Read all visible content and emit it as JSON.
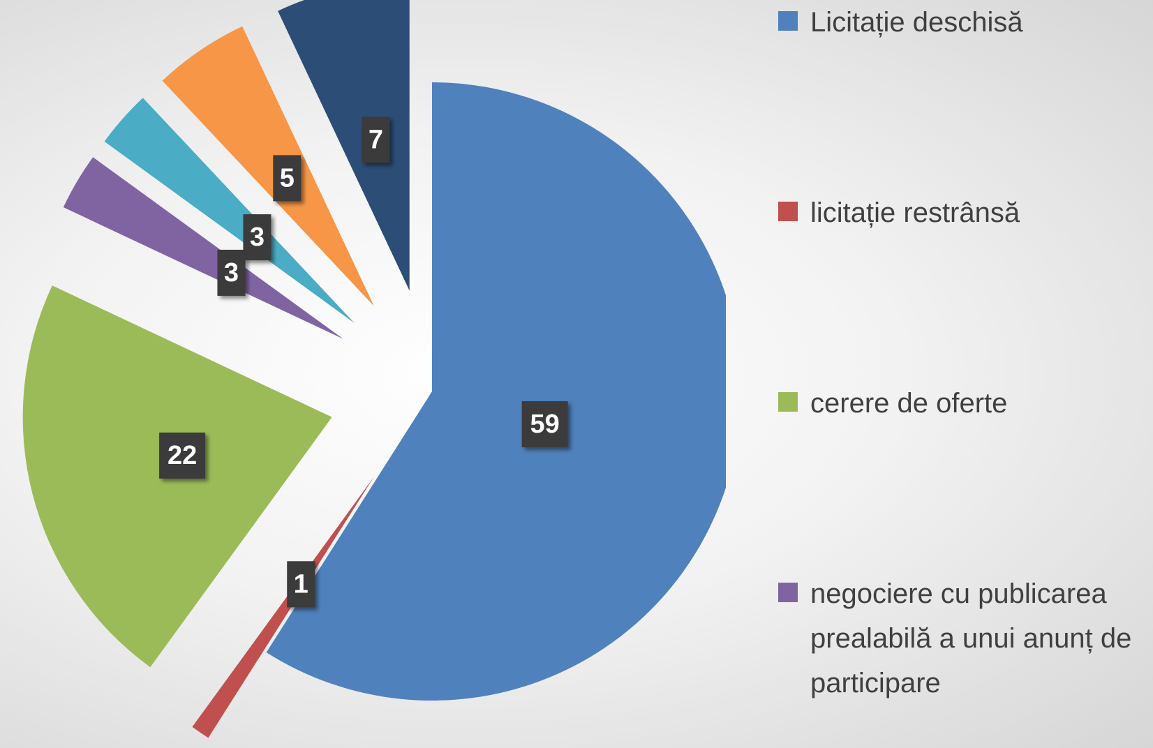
{
  "chart_data": {
    "type": "pie",
    "categories": [
      "Licitație deschisă",
      "licitație restrânsă",
      "cerere de oferte",
      "negociere cu publicarea prealabilă a unui anunț de participare",
      null,
      null,
      null
    ],
    "values": [
      59,
      1,
      22,
      3,
      3,
      5,
      7
    ],
    "colors": [
      "#4f81bd",
      "#c0504d",
      "#9bbb59",
      "#8064a2",
      "#4bacc6",
      "#f79646",
      "#2c4d75"
    ],
    "legend": "right"
  }
}
